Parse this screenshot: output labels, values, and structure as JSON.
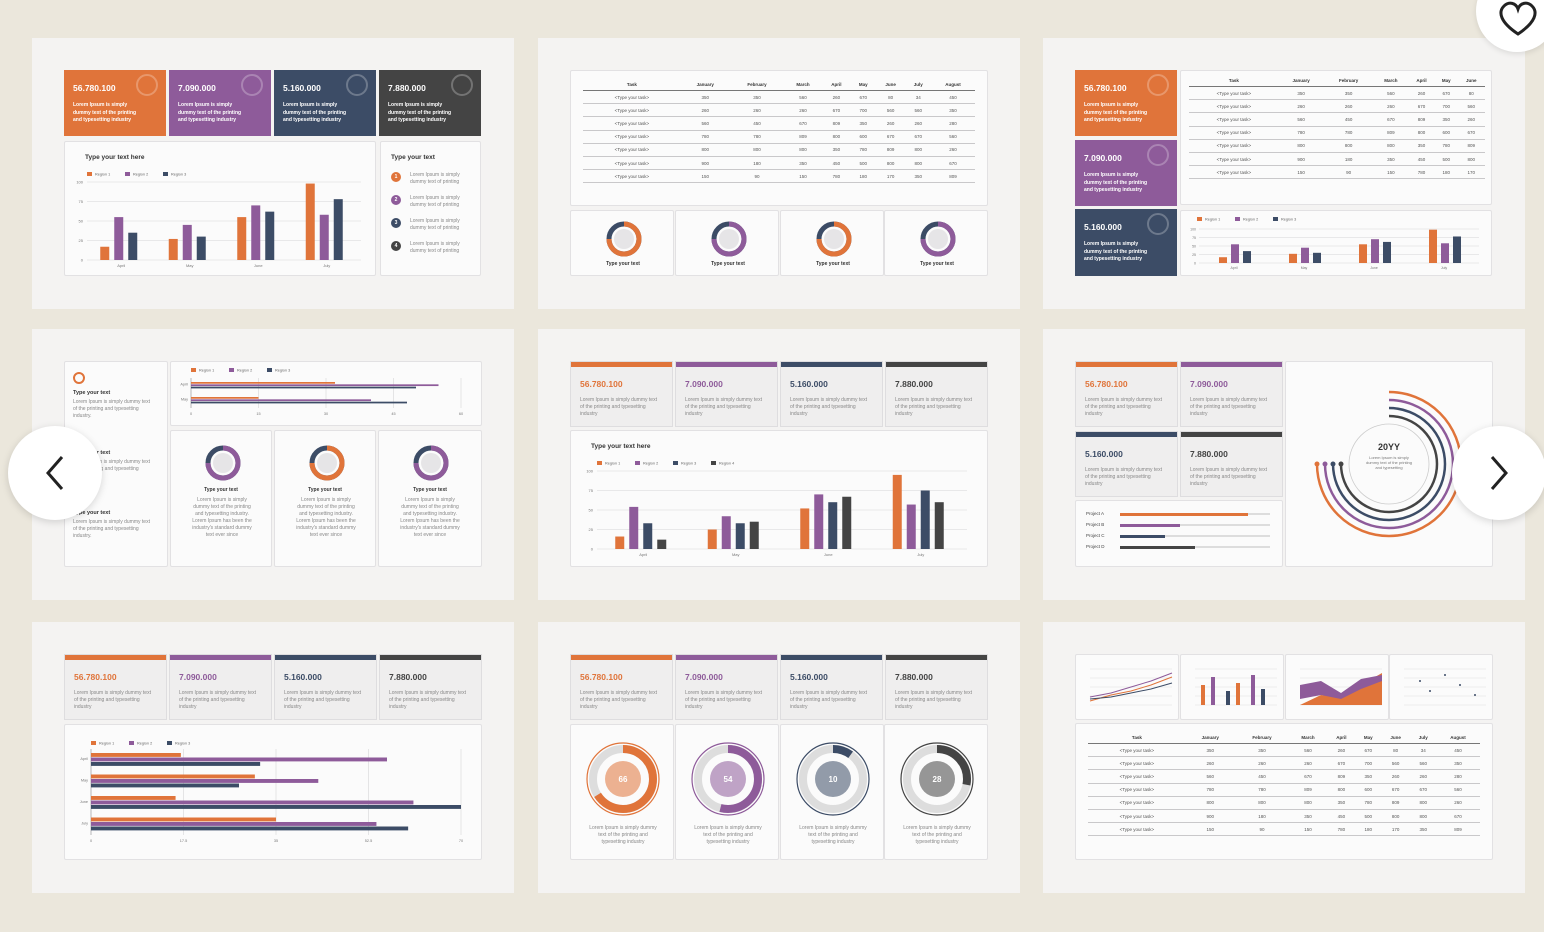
{
  "colors": {
    "orange": "#e0743a",
    "purple": "#8e5b9a",
    "navy": "#3c4c66",
    "dark": "#444444",
    "bg": "#ebe7dc"
  },
  "kpis": [
    {
      "value": "56.780.100",
      "desc": "Lorem Ipsum is simply dummy text of the printing and typesetting industry",
      "icon": "flask-icon"
    },
    {
      "value": "7.090.000",
      "desc": "Lorem Ipsum is simply dummy text of the printing and typesetting industry",
      "icon": "stopwatch-icon"
    },
    {
      "value": "5.160.000",
      "desc": "Lorem Ipsum is simply dummy text of the printing and typesetting industry",
      "icon": "handshake-icon"
    },
    {
      "value": "7.880.000",
      "desc": "Lorem Ipsum is simply dummy text of the printing and typesetting industry",
      "icon": "gears-icon"
    }
  ],
  "chart_data": [
    {
      "type": "bar",
      "title": "Type your text here",
      "categories": [
        "April",
        "May",
        "June",
        "July"
      ],
      "ylim": [
        0,
        100
      ],
      "yticks": [
        "0",
        "25",
        "50",
        "75",
        "100"
      ],
      "series": [
        {
          "name": "Region 1",
          "values": [
            17,
            27,
            55,
            98
          ]
        },
        {
          "name": "Region 2",
          "values": [
            55,
            45,
            70,
            58
          ]
        },
        {
          "name": "Region 3",
          "values": [
            35,
            30,
            62,
            78
          ]
        }
      ]
    },
    {
      "type": "bar",
      "title": "Type your text here",
      "categories": [
        "April",
        "May",
        "June",
        "July"
      ],
      "ylim": [
        0,
        100
      ],
      "yticks": [
        "0",
        "25",
        "50",
        "75",
        "100"
      ],
      "series": [
        {
          "name": "Region 1",
          "values": [
            16,
            25,
            52,
            95
          ]
        },
        {
          "name": "Region 2",
          "values": [
            54,
            42,
            70,
            57
          ]
        },
        {
          "name": "Region 3",
          "values": [
            33,
            33,
            60,
            75
          ]
        },
        {
          "name": "Region 4",
          "values": [
            12,
            35,
            67,
            60
          ]
        }
      ]
    }
  ],
  "slide1": {
    "side_title": "Type your text",
    "side_items": [
      "Lorem Ipsum is simply dummy text of printing",
      "Lorem Ipsum is simply dummy text of printing",
      "Lorem Ipsum is simply dummy text of printing",
      "Lorem Ipsum is simply dummy text of printing"
    ]
  },
  "table": {
    "headers": [
      "Task",
      "January",
      "February",
      "March",
      "April",
      "May",
      "June",
      "July",
      "August"
    ],
    "rows": [
      [
        "<Type your task>",
        "350",
        "350",
        "560",
        "260",
        "670",
        "80",
        "34",
        "450"
      ],
      [
        "<Type your task>",
        "260",
        "260",
        "260",
        "670",
        "700",
        "560",
        "560",
        "350"
      ],
      [
        "<Type your task>",
        "560",
        "450",
        "670",
        "809",
        "350",
        "260",
        "260",
        "280"
      ],
      [
        "<Type your task>",
        "780",
        "780",
        "809",
        "800",
        "600",
        "670",
        "670",
        "560"
      ],
      [
        "<Type your task>",
        "800",
        "800",
        "800",
        "350",
        "780",
        "809",
        "800",
        "260"
      ],
      [
        "<Type your task>",
        "900",
        "180",
        "350",
        "450",
        "500",
        "800",
        "800",
        "670"
      ],
      [
        "<Type your task>",
        "150",
        "90",
        "150",
        "780",
        "180",
        "170",
        "350",
        "809"
      ]
    ]
  },
  "donut_labels": [
    "Type your text",
    "Type your text",
    "Type your text",
    "Type your text"
  ],
  "progress_values": [
    {
      "value": "66",
      "pct": 0.66
    },
    {
      "value": "54",
      "pct": 0.54
    },
    {
      "value": "10",
      "pct": 0.1
    },
    {
      "value": "28",
      "pct": 0.28
    }
  ],
  "progress_desc": "Lorem Ipsum is simply dummy text of the printing and typesetting industry",
  "spiral": {
    "year": "20YY",
    "desc": "Lorem Ipsum is simply dummy text of the printing and typesetting"
  },
  "projects": [
    {
      "name": "Project A",
      "pct": 0.85
    },
    {
      "name": "Project B",
      "pct": 0.4
    },
    {
      "name": "Project C",
      "pct": 0.3
    },
    {
      "name": "Project D",
      "pct": 0.5
    }
  ],
  "side_list_title": "Type your text",
  "side_list_desc": "Lorem Ipsum is simply dummy text of the printing and typesetting industry.",
  "card_desc": "Lorem Ipsum is simply dummy text of the printing and typesetting industry. Lorem Ipsum has been the industry's standard dummy text ever since",
  "region_labels": [
    "Region 1",
    "Region 2",
    "Region 3",
    "Region 4"
  ],
  "months": [
    "April",
    "May",
    "June",
    "July"
  ]
}
